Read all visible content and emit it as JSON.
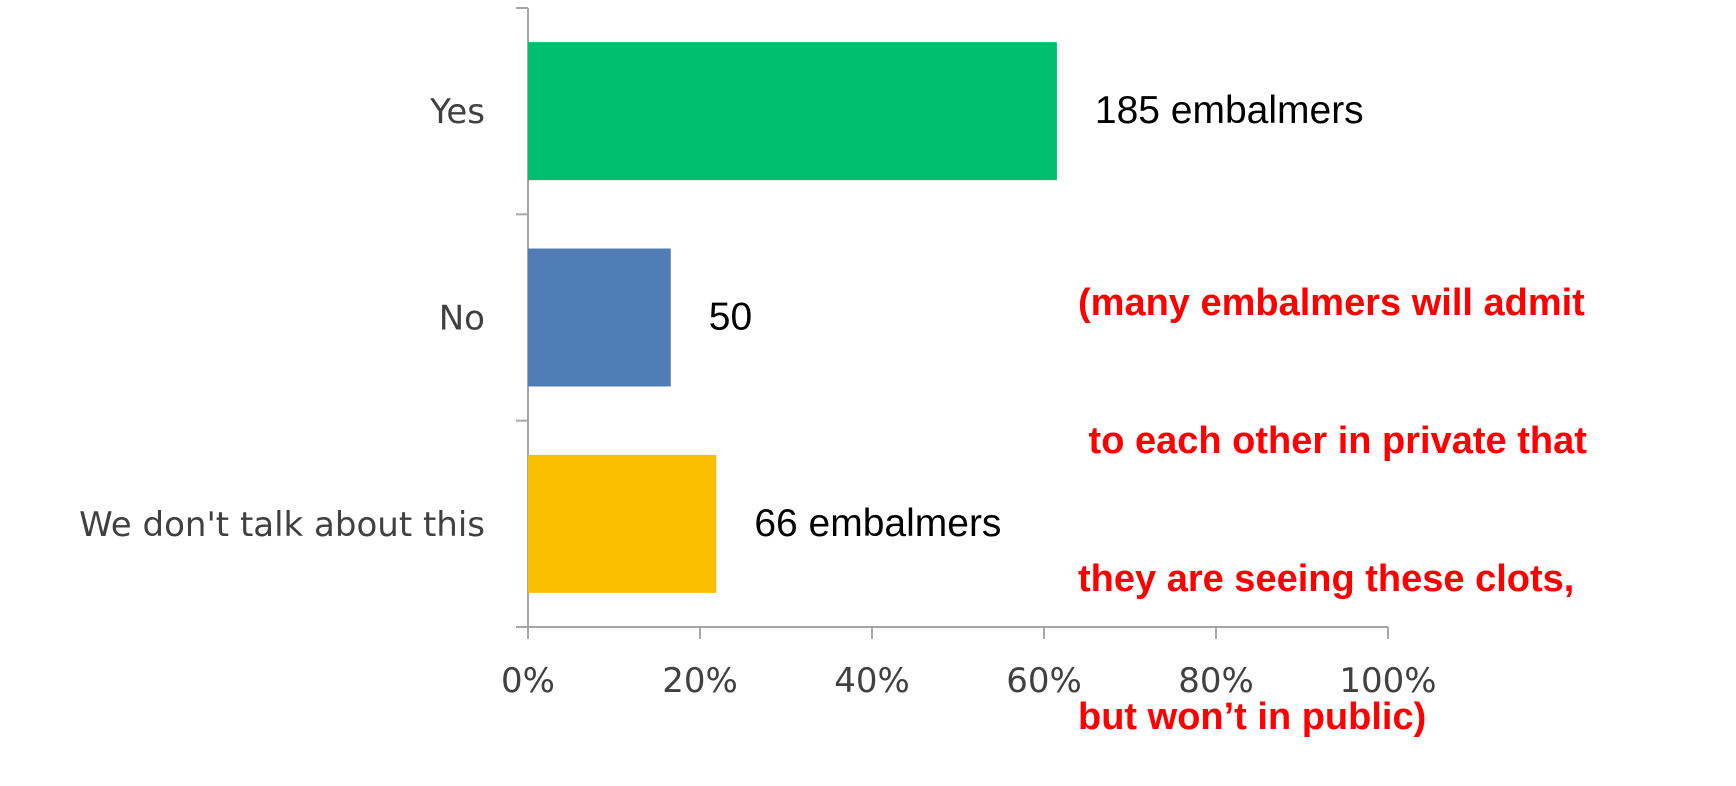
{
  "chart_data": {
    "type": "bar",
    "orientation": "horizontal",
    "categories": [
      "Yes",
      "No",
      "We don't talk about this"
    ],
    "values": [
      61.5,
      16.6,
      21.9
    ],
    "data_labels": [
      "185 embalmers",
      "50",
      "66 embalmers"
    ],
    "colors": [
      "#00bf6f",
      "#507cb6",
      "#f9be00"
    ],
    "xlim": [
      0,
      100
    ],
    "x_ticks": [
      "0%",
      "20%",
      "40%",
      "60%",
      "80%",
      "100%"
    ],
    "grid": false,
    "title": "",
    "xlabel": "",
    "ylabel": ""
  },
  "annotation": {
    "color": "#ff0000",
    "lines": [
      "(many embalmers will admit",
      " to each other in private that",
      "they are seeing these clots,",
      "but won’t in public)"
    ]
  }
}
